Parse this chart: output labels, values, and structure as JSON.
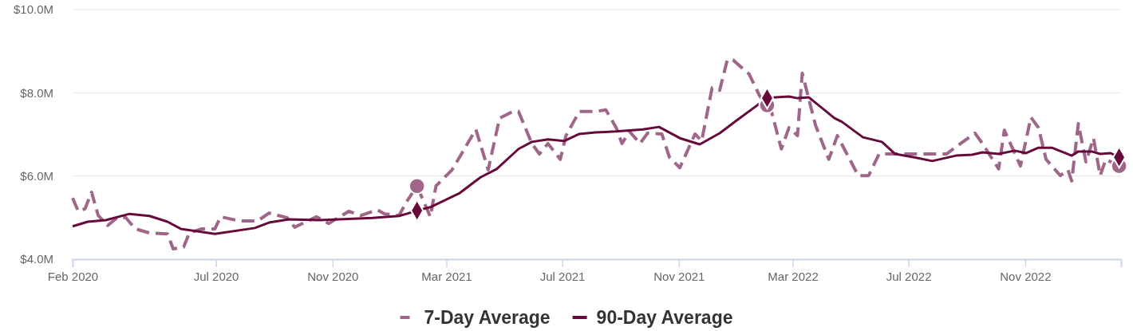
{
  "chart_data": {
    "type": "line",
    "xlim": [
      "2020-02-01",
      "2023-02-10"
    ],
    "xticks": [
      {
        "value": "2020-02-01",
        "label": "Feb 2020"
      },
      {
        "value": "2020-07-01",
        "label": "Jul 2020"
      },
      {
        "value": "2020-11-01",
        "label": "Nov 2020"
      },
      {
        "value": "2021-03-01",
        "label": "Mar 2021"
      },
      {
        "value": "2021-07-01",
        "label": "Jul 2021"
      },
      {
        "value": "2021-11-01",
        "label": "Nov 2021"
      },
      {
        "value": "2022-03-01",
        "label": "Mar 2022"
      },
      {
        "value": "2022-07-01",
        "label": "Jul 2022"
      },
      {
        "value": "2022-11-01",
        "label": "Nov 2022"
      }
    ],
    "ylim": [
      4,
      10
    ],
    "yticks": [
      {
        "value": 4,
        "label": "$4.0M"
      },
      {
        "value": 6,
        "label": "$6.0M"
      },
      {
        "value": 8,
        "label": "$8.0M"
      },
      {
        "value": 10,
        "label": "$10.0M"
      }
    ],
    "grid": "y",
    "legend": "bottom",
    "series": [
      {
        "name": "7-Day Average",
        "color": "#a0668a",
        "line_style": "dashed",
        "x": [
          "2020-02-01",
          "2020-02-07",
          "2020-02-14",
          "2020-02-21",
          "2020-02-28",
          "2020-03-09",
          "2020-03-19",
          "2020-03-28",
          "2020-04-07",
          "2020-04-22",
          "2020-05-11",
          "2020-05-17",
          "2020-05-28",
          "2020-06-03",
          "2020-06-16",
          "2020-06-30",
          "2020-07-06",
          "2020-07-26",
          "2020-08-14",
          "2020-08-26",
          "2020-09-14",
          "2020-09-22",
          "2020-10-15",
          "2020-10-28",
          "2020-11-18",
          "2020-12-01",
          "2020-12-18",
          "2020-12-26",
          "2021-01-10",
          "2021-01-18",
          "2021-01-29",
          "2021-02-12",
          "2021-02-18",
          "2021-03-07",
          "2021-04-01",
          "2021-04-14",
          "2021-04-26",
          "2021-05-10",
          "2021-05-16",
          "2021-05-30",
          "2021-06-07",
          "2021-06-16",
          "2021-06-29",
          "2021-07-05",
          "2021-07-19",
          "2021-08-05",
          "2021-08-16",
          "2021-08-27",
          "2021-09-02",
          "2021-09-10",
          "2021-09-21",
          "2021-09-29",
          "2021-10-14",
          "2021-10-22",
          "2021-11-02",
          "2021-11-18",
          "2021-11-25",
          "2021-12-06",
          "2021-12-14",
          "2021-12-22",
          "2021-12-28",
          "2022-01-14",
          "2022-01-25",
          "2022-02-02",
          "2022-02-06",
          "2022-02-17",
          "2022-02-25",
          "2022-03-06",
          "2022-03-11",
          "2022-03-25",
          "2022-04-08",
          "2022-04-17",
          "2022-05-09",
          "2022-05-20",
          "2022-05-31",
          "2022-06-14",
          "2022-08-10",
          "2022-09-09",
          "2022-09-17",
          "2022-10-04",
          "2022-10-10",
          "2022-10-27",
          "2022-11-07",
          "2022-11-15",
          "2022-11-23",
          "2022-12-08",
          "2022-12-16",
          "2022-12-20",
          "2022-12-27",
          "2023-01-04",
          "2023-01-12",
          "2023-01-19",
          "2023-01-25",
          "2023-02-08"
        ],
        "values": [
          5.47,
          5.15,
          5.21,
          5.61,
          5.05,
          4.81,
          5.0,
          5.0,
          4.73,
          4.63,
          4.61,
          4.25,
          4.29,
          4.63,
          4.73,
          4.73,
          5.02,
          4.92,
          4.92,
          5.11,
          5.0,
          4.77,
          5.02,
          4.86,
          5.15,
          5.05,
          5.19,
          5.09,
          5.05,
          5.38,
          5.76,
          5.02,
          5.76,
          6.15,
          7.12,
          6.15,
          7.39,
          7.55,
          7.55,
          6.78,
          6.53,
          6.78,
          6.4,
          6.97,
          7.55,
          7.55,
          7.59,
          7.16,
          6.78,
          7.07,
          6.78,
          7.03,
          7.01,
          6.45,
          6.2,
          7.01,
          6.84,
          8.12,
          8.06,
          8.79,
          8.79,
          8.45,
          7.93,
          7.7,
          7.6,
          6.65,
          7.16,
          6.97,
          8.47,
          7.22,
          6.4,
          6.97,
          6.01,
          6.01,
          6.53,
          6.53,
          6.53,
          7.03,
          6.78,
          6.17,
          7.1,
          6.24,
          7.41,
          7.16,
          6.4,
          6.01,
          6.15,
          5.88,
          7.26,
          6.34,
          6.91,
          6.01,
          6.4,
          6.24
        ]
      },
      {
        "name": "90-Day Average",
        "color": "#660a3c",
        "line_style": "solid",
        "x": [
          "2020-02-01",
          "2020-02-17",
          "2020-03-07",
          "2020-04-01",
          "2020-04-22",
          "2020-05-11",
          "2020-05-25",
          "2020-06-30",
          "2020-08-11",
          "2020-08-26",
          "2020-09-16",
          "2020-10-18",
          "2020-12-13",
          "2021-01-10",
          "2021-01-18",
          "2021-01-29",
          "2021-02-12",
          "2021-03-15",
          "2021-04-06",
          "2021-04-23",
          "2021-05-16",
          "2021-05-30",
          "2021-06-16",
          "2021-07-03",
          "2021-07-19",
          "2021-08-05",
          "2021-08-27",
          "2021-09-24",
          "2021-10-11",
          "2021-11-02",
          "2021-11-23",
          "2021-12-14",
          "2021-12-31",
          "2022-01-25",
          "2022-02-02",
          "2022-02-11",
          "2022-02-25",
          "2022-03-06",
          "2022-03-18",
          "2022-04-14",
          "2022-04-22",
          "2022-05-14",
          "2022-06-03",
          "2022-06-17",
          "2022-07-07",
          "2022-07-26",
          "2022-08-20",
          "2022-09-06",
          "2022-09-17",
          "2022-10-04",
          "2022-10-21",
          "2022-11-02",
          "2022-11-15",
          "2022-11-29",
          "2022-12-20",
          "2022-12-27",
          "2023-01-10",
          "2023-01-19",
          "2023-01-30",
          "2023-02-08"
        ],
        "values": [
          4.79,
          4.9,
          4.94,
          5.09,
          5.04,
          4.9,
          4.73,
          4.61,
          4.75,
          4.88,
          4.96,
          4.94,
          4.99,
          5.04,
          5.09,
          5.17,
          5.25,
          5.59,
          5.97,
          6.17,
          6.65,
          6.82,
          6.88,
          6.84,
          7.01,
          7.05,
          7.07,
          7.12,
          7.18,
          6.91,
          6.76,
          7.03,
          7.32,
          7.74,
          7.87,
          7.89,
          7.91,
          7.87,
          7.89,
          7.39,
          7.3,
          6.93,
          6.82,
          6.53,
          6.45,
          6.36,
          6.49,
          6.51,
          6.57,
          6.53,
          6.61,
          6.55,
          6.68,
          6.68,
          6.49,
          6.59,
          6.59,
          6.53,
          6.55,
          6.45
        ]
      },
      {
        "type": "scatter",
        "marker": "circle",
        "color": "#a0668a",
        "x": [
          "2021-01-29",
          "2022-02-02",
          "2023-02-08"
        ],
        "values": [
          5.76,
          7.7,
          6.24
        ]
      },
      {
        "type": "scatter",
        "marker": "diamond",
        "color": "#660a3c",
        "x": [
          "2021-01-29",
          "2022-02-02",
          "2023-02-08"
        ],
        "values": [
          5.17,
          7.87,
          6.45
        ]
      }
    ]
  }
}
